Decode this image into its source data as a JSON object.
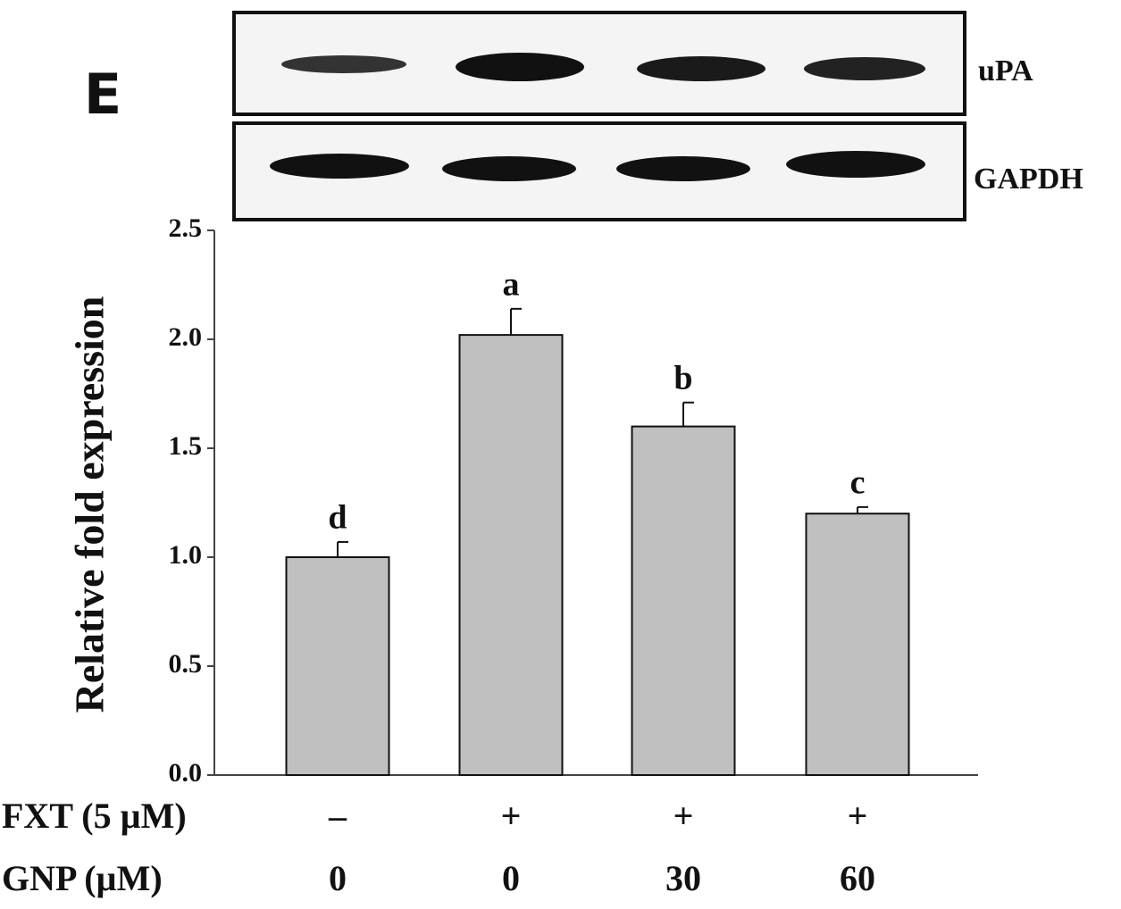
{
  "chart_data": {
    "type": "bar",
    "panel_label": "E",
    "blot_labels": [
      "uPA",
      "GAPDH"
    ],
    "y_label": "Relative fold expression",
    "values": [
      1.0,
      2.02,
      1.6,
      1.2
    ],
    "errors": [
      0.07,
      0.12,
      0.11,
      0.03
    ],
    "significance": [
      "d",
      "a",
      "b",
      "c"
    ],
    "color": "#c0c0c0",
    "ylim": [
      0,
      2.5
    ],
    "yticks": [
      {
        "value": 0,
        "label": "0.0"
      },
      0.5,
      {
        "value": 1,
        "label": "1.0"
      },
      1.5,
      {
        "value": 2,
        "label": "2.0"
      },
      2.5
    ],
    "treatment_rows": [
      {
        "label": "FXT (5 µM)",
        "values": [
          "–",
          "+",
          "+",
          "+"
        ]
      },
      {
        "label": "GNP (µM)",
        "values": [
          "0",
          "0",
          "30",
          "60"
        ]
      }
    ]
  }
}
